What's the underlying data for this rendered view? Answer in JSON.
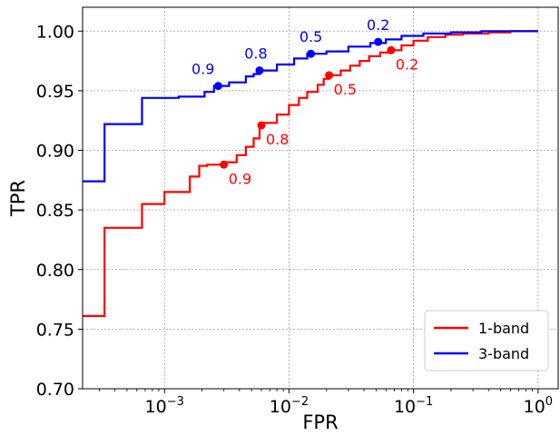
{
  "chart_data": {
    "type": "line",
    "xscale": "log",
    "xlabel": "FPR",
    "ylabel": "TPR",
    "xlim": [
      0.00022,
      1.45
    ],
    "ylim": [
      0.7,
      1.02
    ],
    "grid": true,
    "legend": "lower-right",
    "xticks": [
      {
        "value": 0.001,
        "base": "10",
        "exp": "−3"
      },
      {
        "value": 0.01,
        "base": "10",
        "exp": "−2"
      },
      {
        "value": 0.1,
        "base": "10",
        "exp": "−1"
      },
      {
        "value": 1,
        "base": "10",
        "exp": "0"
      }
    ],
    "yticks": [
      {
        "value": 0.7,
        "label": "0.70"
      },
      {
        "value": 0.75,
        "label": "0.75"
      },
      {
        "value": 0.8,
        "label": "0.80"
      },
      {
        "value": 0.85,
        "label": "0.85"
      },
      {
        "value": 0.9,
        "label": "0.90"
      },
      {
        "value": 0.95,
        "label": "0.95"
      },
      {
        "value": 1.0,
        "label": "1.00"
      }
    ],
    "series": [
      {
        "name": "1-band",
        "color": "#ff0000",
        "points": [
          [
            0.0002,
            0.761
          ],
          [
            0.00033,
            0.761
          ],
          [
            0.00033,
            0.835
          ],
          [
            0.00066,
            0.835
          ],
          [
            0.00066,
            0.855
          ],
          [
            0.001,
            0.855
          ],
          [
            0.001,
            0.865
          ],
          [
            0.0016,
            0.865
          ],
          [
            0.0016,
            0.878
          ],
          [
            0.0019,
            0.878
          ],
          [
            0.0019,
            0.887
          ],
          [
            0.0022,
            0.887
          ],
          [
            0.0022,
            0.888
          ],
          [
            0.003,
            0.888
          ],
          [
            0.003,
            0.89
          ],
          [
            0.0038,
            0.89
          ],
          [
            0.0038,
            0.896
          ],
          [
            0.0045,
            0.896
          ],
          [
            0.0045,
            0.903
          ],
          [
            0.0052,
            0.903
          ],
          [
            0.0052,
            0.91
          ],
          [
            0.0058,
            0.91
          ],
          [
            0.0058,
            0.92
          ],
          [
            0.0062,
            0.92
          ],
          [
            0.0062,
            0.923
          ],
          [
            0.008,
            0.923
          ],
          [
            0.008,
            0.93
          ],
          [
            0.01,
            0.93
          ],
          [
            0.01,
            0.938
          ],
          [
            0.012,
            0.938
          ],
          [
            0.012,
            0.944
          ],
          [
            0.014,
            0.944
          ],
          [
            0.014,
            0.949
          ],
          [
            0.017,
            0.949
          ],
          [
            0.017,
            0.955
          ],
          [
            0.019,
            0.955
          ],
          [
            0.019,
            0.96
          ],
          [
            0.021,
            0.96
          ],
          [
            0.021,
            0.963
          ],
          [
            0.026,
            0.963
          ],
          [
            0.026,
            0.967
          ],
          [
            0.031,
            0.967
          ],
          [
            0.031,
            0.971
          ],
          [
            0.037,
            0.971
          ],
          [
            0.037,
            0.975
          ],
          [
            0.044,
            0.975
          ],
          [
            0.044,
            0.979
          ],
          [
            0.054,
            0.979
          ],
          [
            0.054,
            0.982
          ],
          [
            0.066,
            0.982
          ],
          [
            0.066,
            0.984
          ],
          [
            0.08,
            0.984
          ],
          [
            0.08,
            0.988
          ],
          [
            0.1,
            0.988
          ],
          [
            0.1,
            0.992
          ],
          [
            0.13,
            0.992
          ],
          [
            0.13,
            0.995
          ],
          [
            0.18,
            0.995
          ],
          [
            0.18,
            0.997
          ],
          [
            0.25,
            0.997
          ],
          [
            0.25,
            0.998
          ],
          [
            0.4,
            0.998
          ],
          [
            0.4,
            0.999
          ],
          [
            0.6,
            0.999
          ],
          [
            0.6,
            1.0
          ],
          [
            1.0,
            1.0
          ]
        ],
        "markers": [
          {
            "x": 0.003,
            "y": 0.888,
            "label": "0.9"
          },
          {
            "x": 0.006,
            "y": 0.921,
            "label": "0.8"
          },
          {
            "x": 0.021,
            "y": 0.963,
            "label": "0.5"
          },
          {
            "x": 0.066,
            "y": 0.984,
            "label": "0.2"
          }
        ]
      },
      {
        "name": "3-band",
        "color": "#0000ff",
        "points": [
          [
            0.0002,
            0.874
          ],
          [
            0.00033,
            0.874
          ],
          [
            0.00033,
            0.922
          ],
          [
            0.00066,
            0.922
          ],
          [
            0.00066,
            0.944
          ],
          [
            0.0013,
            0.944
          ],
          [
            0.0013,
            0.945
          ],
          [
            0.0021,
            0.945
          ],
          [
            0.0021,
            0.949
          ],
          [
            0.0025,
            0.949
          ],
          [
            0.0025,
            0.954
          ],
          [
            0.0033,
            0.954
          ],
          [
            0.0033,
            0.957
          ],
          [
            0.0045,
            0.957
          ],
          [
            0.0045,
            0.962
          ],
          [
            0.0052,
            0.962
          ],
          [
            0.0052,
            0.964
          ],
          [
            0.0058,
            0.964
          ],
          [
            0.0058,
            0.967
          ],
          [
            0.008,
            0.967
          ],
          [
            0.008,
            0.972
          ],
          [
            0.011,
            0.972
          ],
          [
            0.011,
            0.977
          ],
          [
            0.014,
            0.977
          ],
          [
            0.014,
            0.981
          ],
          [
            0.02,
            0.981
          ],
          [
            0.02,
            0.983
          ],
          [
            0.03,
            0.983
          ],
          [
            0.03,
            0.987
          ],
          [
            0.045,
            0.987
          ],
          [
            0.045,
            0.99
          ],
          [
            0.06,
            0.99
          ],
          [
            0.06,
            0.993
          ],
          [
            0.08,
            0.993
          ],
          [
            0.08,
            0.996
          ],
          [
            0.12,
            0.996
          ],
          [
            0.12,
            0.998
          ],
          [
            0.2,
            0.998
          ],
          [
            0.2,
            0.999
          ],
          [
            0.35,
            0.999
          ],
          [
            0.35,
            1.0
          ],
          [
            1.0,
            1.0
          ]
        ],
        "markers": [
          {
            "x": 0.0027,
            "y": 0.954,
            "label": "0.9"
          },
          {
            "x": 0.0058,
            "y": 0.967,
            "label": "0.8"
          },
          {
            "x": 0.015,
            "y": 0.981,
            "label": "0.5"
          },
          {
            "x": 0.052,
            "y": 0.991,
            "label": "0.2"
          }
        ]
      }
    ]
  }
}
